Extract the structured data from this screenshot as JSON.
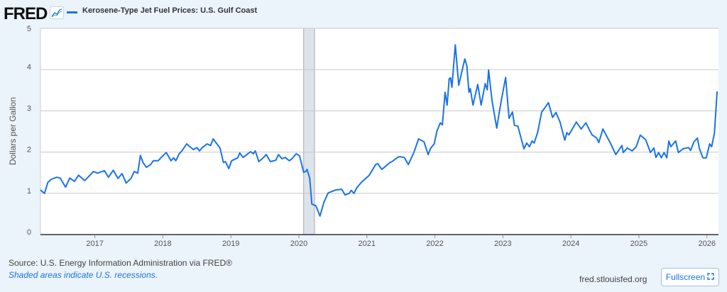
{
  "header": {
    "logo": "FRED",
    "logo_icon": "line-chart-icon",
    "series_title": "Kerosene-Type Jet Fuel Prices: U.S. Gulf Coast"
  },
  "footer": {
    "source": "Source: U.S. Energy Information Administration via FRED®",
    "recession_note": "Shaded areas indicate U.S. recessions.",
    "site": "fred.stlouisfed.org",
    "fullscreen_label": "Fullscreen",
    "fullscreen_icon": "expand-icon"
  },
  "colors": {
    "line": "#1a73e8",
    "recession": "#dde3ea",
    "background": "#ebf3fb",
    "grid": "#c8c8c8"
  },
  "chart_data": {
    "type": "line",
    "title": "Kerosene-Type Jet Fuel Prices: U.S. Gulf Coast",
    "xlabel": "",
    "ylabel": "Dollars per Gallon",
    "xlim": [
      2016.2,
      2026.17
    ],
    "ylim": [
      0,
      5
    ],
    "yticks": [
      "0",
      "1",
      "2",
      "3",
      "4",
      "5"
    ],
    "xticks": [
      "2017",
      "2018",
      "2019",
      "2020",
      "2021",
      "2022",
      "2023",
      "2024",
      "2025",
      "2026"
    ],
    "grid": true,
    "legend": "top-left",
    "recessions": [
      [
        2020.07,
        2020.23
      ]
    ],
    "series": [
      {
        "x": [
          2016.2,
          2016.26,
          2016.31,
          2016.36,
          2016.44,
          2016.49,
          2016.57,
          2016.63,
          2016.7,
          2016.76,
          2016.85,
          2016.98,
          2017.04,
          2017.14,
          2017.2,
          2017.27,
          2017.34,
          2017.4,
          2017.46,
          2017.53,
          2017.58,
          2017.63,
          2017.67,
          2017.71,
          2017.76,
          2017.82,
          2017.86,
          2017.93,
          2018.0,
          2018.05,
          2018.12,
          2018.16,
          2018.19,
          2018.24,
          2018.28,
          2018.35,
          2018.45,
          2018.5,
          2018.54,
          2018.58,
          2018.65,
          2018.7,
          2018.74,
          2018.84,
          2018.89,
          2018.92,
          2018.97,
          2019.01,
          2019.1,
          2019.13,
          2019.18,
          2019.29,
          2019.33,
          2019.36,
          2019.41,
          2019.48,
          2019.52,
          2019.58,
          2019.66,
          2019.7,
          2019.75,
          2019.8,
          2019.86,
          2019.9,
          2019.96,
          2020.01,
          2020.07,
          2020.1,
          2020.12,
          2020.16,
          2020.19,
          2020.25,
          2020.31,
          2020.37,
          2020.43,
          2020.49,
          2020.54,
          2020.63,
          2020.68,
          2020.74,
          2020.77,
          2020.81,
          2020.85,
          2020.92,
          2021.03,
          2021.13,
          2021.16,
          2021.22,
          2021.29,
          2021.34,
          2021.37,
          2021.45,
          2021.48,
          2021.55,
          2021.61,
          2021.69,
          2021.76,
          2021.84,
          2021.9,
          2021.94,
          2021.99,
          2022.03,
          2022.08,
          2022.11,
          2022.15,
          2022.18,
          2022.21,
          2022.23,
          2022.25,
          2022.3,
          2022.35,
          2022.44,
          2022.47,
          2022.5,
          2022.52,
          2022.56,
          2022.63,
          2022.68,
          2022.74,
          2022.77,
          2022.79,
          2022.84,
          2022.91,
          2022.94,
          2022.98,
          2023.04,
          2023.09,
          2023.14,
          2023.17,
          2023.22,
          2023.31,
          2023.35,
          2023.39,
          2023.43,
          2023.46,
          2023.51,
          2023.57,
          2023.62,
          2023.67,
          2023.73,
          2023.78,
          2023.84,
          2023.91,
          2023.94,
          2023.97,
          2024.08,
          2024.15,
          2024.22,
          2024.31,
          2024.38,
          2024.41,
          2024.47,
          2024.58,
          2024.66,
          2024.75,
          2024.77,
          2024.83,
          2024.9,
          2024.96,
          2025.02,
          2025.1,
          2025.17,
          2025.22,
          2025.25,
          2025.29,
          2025.33,
          2025.37,
          2025.41,
          2025.44,
          2025.47,
          2025.54,
          2025.58,
          2025.65,
          2025.73,
          2025.76,
          2025.81,
          2025.86,
          2025.89,
          2025.94,
          2025.99,
          2026.04,
          2026.07,
          2026.11,
          2026.15
        ],
        "y": [
          1.08,
          1.0,
          1.27,
          1.34,
          1.39,
          1.37,
          1.15,
          1.37,
          1.29,
          1.44,
          1.31,
          1.53,
          1.49,
          1.55,
          1.39,
          1.56,
          1.36,
          1.48,
          1.25,
          1.36,
          1.53,
          1.49,
          1.92,
          1.74,
          1.63,
          1.7,
          1.79,
          1.79,
          1.91,
          1.99,
          1.79,
          1.86,
          1.79,
          1.96,
          2.03,
          2.2,
          2.06,
          2.11,
          2.03,
          2.11,
          2.2,
          2.16,
          2.32,
          2.1,
          1.75,
          1.77,
          1.6,
          1.79,
          1.86,
          1.98,
          1.87,
          2.01,
          1.96,
          2.03,
          1.77,
          1.87,
          1.94,
          1.77,
          1.8,
          1.94,
          1.84,
          1.87,
          1.79,
          1.84,
          1.96,
          1.91,
          1.51,
          1.53,
          1.58,
          1.36,
          0.74,
          0.7,
          0.45,
          0.79,
          1.01,
          1.05,
          1.08,
          1.1,
          0.96,
          1.0,
          1.07,
          1.0,
          1.13,
          1.27,
          1.43,
          1.7,
          1.72,
          1.58,
          1.68,
          1.75,
          1.77,
          1.87,
          1.89,
          1.87,
          1.7,
          1.99,
          2.32,
          2.25,
          1.94,
          2.1,
          2.2,
          2.51,
          2.71,
          2.66,
          3.45,
          3.14,
          3.78,
          3.8,
          3.57,
          4.6,
          3.62,
          4.26,
          4.09,
          3.45,
          3.54,
          3.14,
          3.64,
          3.14,
          3.66,
          3.51,
          3.99,
          3.25,
          2.58,
          2.9,
          3.28,
          3.81,
          2.82,
          2.97,
          2.65,
          2.63,
          2.08,
          2.22,
          2.13,
          2.27,
          2.22,
          2.47,
          2.97,
          3.08,
          3.2,
          2.84,
          2.96,
          2.73,
          2.29,
          2.47,
          2.42,
          2.73,
          2.56,
          2.71,
          2.42,
          2.34,
          2.23,
          2.56,
          2.22,
          1.94,
          2.16,
          1.99,
          2.1,
          2.03,
          2.13,
          2.41,
          2.3,
          1.99,
          2.1,
          1.87,
          1.99,
          1.86,
          1.99,
          1.86,
          2.27,
          2.13,
          2.27,
          1.99,
          2.08,
          2.11,
          2.04,
          2.25,
          2.34,
          2.08,
          1.86,
          1.86,
          2.2,
          2.13,
          2.46,
          3.47
        ]
      }
    ]
  }
}
